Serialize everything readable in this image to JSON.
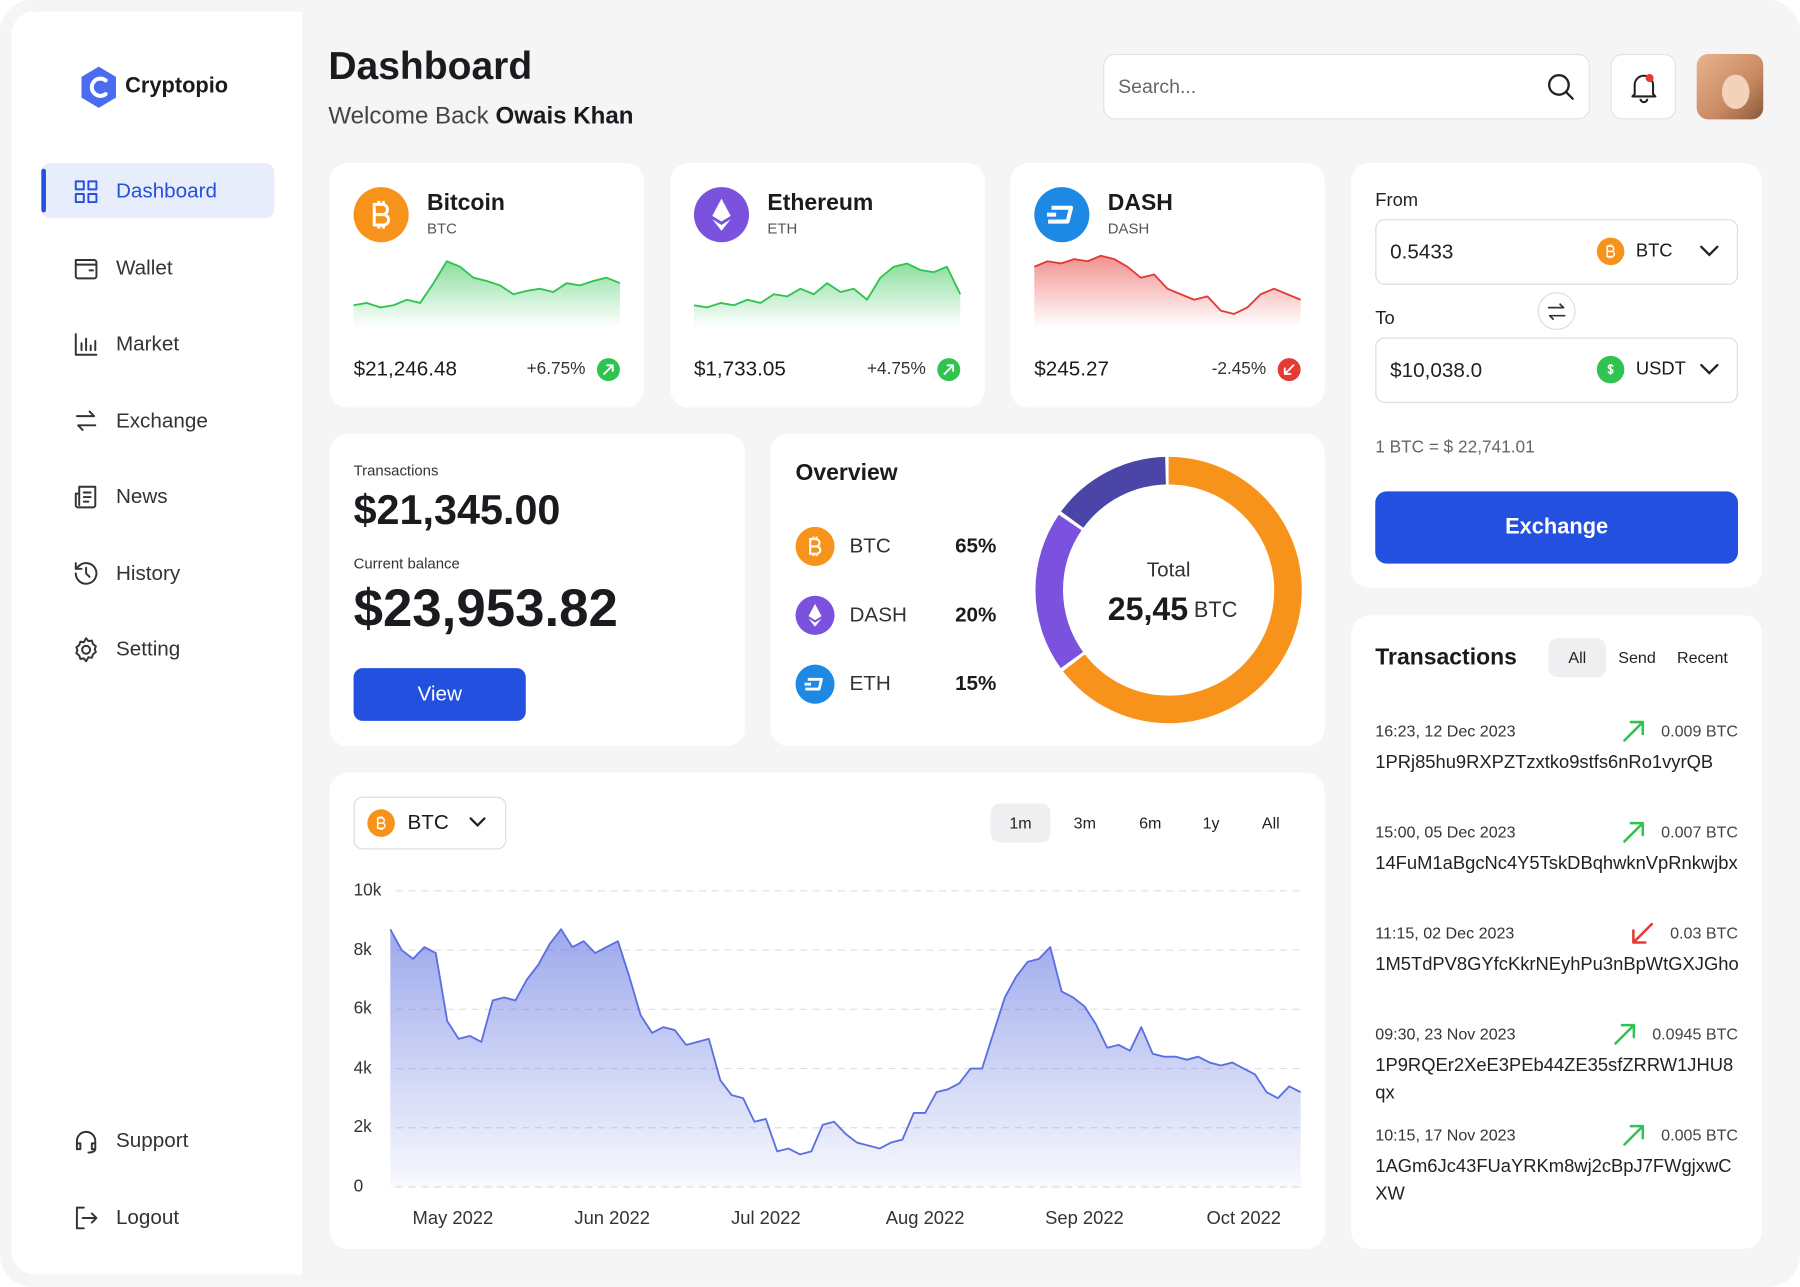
{
  "brand": "Cryptopio",
  "nav": {
    "items": [
      "Dashboard",
      "Wallet",
      "Market",
      "Exchange",
      "News",
      "History",
      "Setting"
    ],
    "active": 0,
    "bottom": [
      "Support",
      "Logout"
    ]
  },
  "header": {
    "title": "Dashboard",
    "greeting": "Welcome Back",
    "user": "Owais Khan",
    "search_placeholder": "Search..."
  },
  "coins": [
    {
      "name": "Bitcoin",
      "symbol": "BTC",
      "price": "$21,246.48",
      "change": "+6.75%",
      "direction": "up",
      "color": "#f7931a",
      "ylim": [
        0,
        70
      ],
      "sparkline": [
        20,
        22,
        18,
        20,
        25,
        22,
        40,
        60,
        55,
        45,
        42,
        38,
        30,
        33,
        35,
        32,
        40,
        38,
        42,
        45,
        40
      ]
    },
    {
      "name": "Ethereum",
      "symbol": "ETH",
      "price": "$1,733.05",
      "change": "+4.75%",
      "direction": "up",
      "color": "#7b52de",
      "ylim": [
        0,
        70
      ],
      "sparkline": [
        20,
        18,
        22,
        20,
        25,
        22,
        30,
        28,
        35,
        30,
        40,
        32,
        35,
        25,
        45,
        55,
        58,
        52,
        50,
        55,
        30
      ]
    },
    {
      "name": "DASH",
      "symbol": "DASH",
      "price": "$245.27",
      "change": "-2.45%",
      "direction": "down",
      "color": "#1e88e5",
      "ylim": [
        0,
        70
      ],
      "sparkline": [
        55,
        60,
        58,
        62,
        60,
        65,
        62,
        55,
        45,
        48,
        35,
        30,
        25,
        28,
        15,
        12,
        18,
        30,
        35,
        30,
        25
      ]
    }
  ],
  "balance": {
    "transactions_label": "Transactions",
    "transactions": "$21,345.00",
    "balance_label": "Current balance",
    "balance": "$23,953.82",
    "button": "View"
  },
  "exchange": {
    "from_label": "From",
    "from_amount": "0.5433",
    "from_currency": "BTC",
    "to_label": "To",
    "to_amount": "$10,038.0",
    "to_currency": "USDT",
    "rate": "1 BTC = $ 22,741.01",
    "button": "Exchange"
  },
  "transactions": {
    "title": "Transactions",
    "tabs": [
      "All",
      "Send",
      "Recent"
    ],
    "active_tab": 0,
    "items": [
      {
        "time": "16:23, 12 Dec 2023",
        "amount": "0.009 BTC",
        "address": "1PRj85hu9RXPZTzxtko9stfs6nRo1vyrQB",
        "direction": "up"
      },
      {
        "time": "15:00, 05 Dec 2023",
        "amount": "0.007 BTC",
        "address": "14FuM1aBgcNc4Y5TskDBqhwknVpRnkwjbx",
        "direction": "up"
      },
      {
        "time": "11:15, 02 Dec 2023",
        "amount": "0.03 BTC",
        "address": "1M5TdPV8GYfcKkrNEyhPu3nBpWtGXJGho",
        "direction": "down"
      },
      {
        "time": "09:30, 23 Nov 2023",
        "amount": "0.0945 BTC",
        "address": "1P9RQEr2XeE3PEb44ZE35sfZRRW1JHU8qx",
        "direction": "up"
      },
      {
        "time": "10:15, 17 Nov 2023",
        "amount": "0.005 BTC",
        "address": "1AGm6Jc43FUaYRKm8wj2cBpJ7FWgjxwCXW",
        "direction": "up"
      }
    ]
  },
  "chart_data": [
    {
      "type": "pie",
      "title": "Overview",
      "categories": [
        "BTC",
        "DASH",
        "ETH"
      ],
      "values": [
        65,
        20,
        15
      ],
      "value_labels": [
        "65%",
        "20%",
        "15%"
      ],
      "colors": [
        "#f7931a",
        "#7b52de",
        "#4a45a6"
      ],
      "icon_colors": [
        "#f7931a",
        "#7b52de",
        "#1e88e5"
      ],
      "center_label": "Total",
      "center_value": "25,45",
      "center_unit": "BTC"
    },
    {
      "type": "area",
      "symbol": "BTC",
      "periods": [
        "1m",
        "3m",
        "6m",
        "1y",
        "All"
      ],
      "active_period": 0,
      "color": "#5b6fe0",
      "grid": true,
      "x": [
        0,
        1,
        2,
        3,
        4,
        5,
        6,
        7,
        8,
        9,
        10,
        11,
        12,
        13,
        14,
        15,
        16,
        17,
        18,
        19,
        20,
        21,
        22,
        23,
        24,
        25,
        26,
        27,
        28,
        29,
        30,
        31,
        32,
        33,
        34,
        35,
        36,
        37,
        38,
        39,
        40,
        41,
        42,
        43,
        44,
        45,
        46,
        47,
        48,
        49,
        50,
        51,
        52,
        53,
        54,
        55,
        56,
        57,
        58,
        59,
        60,
        61,
        62,
        63,
        64,
        65,
        66,
        67,
        68,
        69,
        70,
        71,
        72,
        73,
        74,
        75,
        76,
        77,
        78,
        79,
        80
      ],
      "values": [
        8700,
        8000,
        7700,
        8100,
        7900,
        5600,
        5000,
        5100,
        4900,
        6300,
        6400,
        6300,
        7000,
        7500,
        8200,
        8700,
        8100,
        8300,
        7900,
        8100,
        8300,
        7100,
        5800,
        5200,
        5400,
        5300,
        4800,
        4900,
        5000,
        3600,
        3100,
        3000,
        2200,
        2300,
        1200,
        1300,
        1100,
        1200,
        2100,
        2200,
        1800,
        1500,
        1400,
        1300,
        1500,
        1600,
        2500,
        2500,
        3200,
        3300,
        3500,
        4000,
        4000,
        5200,
        6400,
        7100,
        7600,
        7700,
        8100,
        6600,
        6400,
        6100,
        5500,
        4700,
        4800,
        4600,
        5400,
        4500,
        4400,
        4400,
        4300,
        4400,
        4200,
        4100,
        4200,
        4000,
        3800,
        3200,
        3000,
        3400,
        3200
      ],
      "xlim": [
        0,
        80
      ],
      "xticks": [
        {
          "value": 5.5,
          "label": "May 2022"
        },
        {
          "value": 19.5,
          "label": "Jun 2022"
        },
        {
          "value": 33,
          "label": "Jul 2022"
        },
        {
          "value": 47,
          "label": "Aug 2022"
        },
        {
          "value": 61,
          "label": "Sep 2022"
        },
        {
          "value": 75,
          "label": "Oct 2022"
        }
      ],
      "ylim": [
        0,
        10000
      ],
      "yticks": [
        0,
        {
          "value": 2000,
          "label": "2k"
        },
        {
          "value": 4000,
          "label": "4k"
        },
        {
          "value": 6000,
          "label": "6k"
        },
        {
          "value": 8000,
          "label": "8k"
        },
        {
          "value": 10000,
          "label": "10k"
        }
      ]
    }
  ]
}
